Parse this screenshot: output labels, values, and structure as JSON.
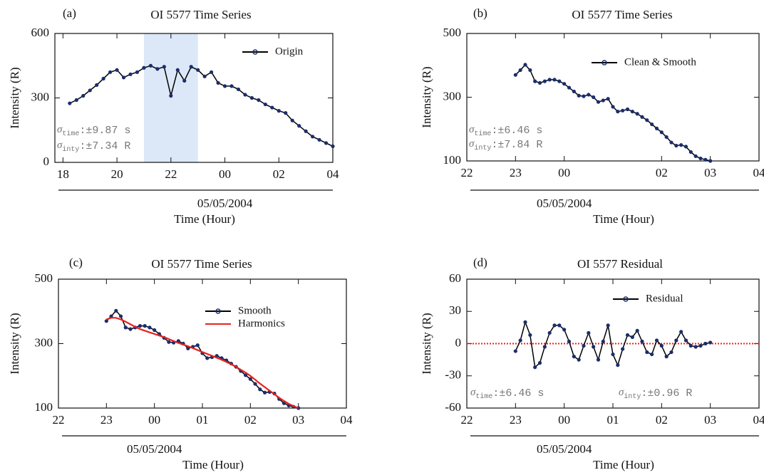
{
  "chart_data": [
    {
      "type": "line",
      "panel_label": "(a)",
      "title": "OI 5577 Time Series",
      "xlabel": "Time (Hour)",
      "ylabel": "Intensity (R)",
      "x": [
        18.25,
        18.5,
        18.75,
        19,
        19.25,
        19.5,
        19.75,
        20,
        20.25,
        20.5,
        20.75,
        21,
        21.25,
        21.5,
        21.75,
        22,
        22.25,
        22.5,
        22.75,
        23,
        23.25,
        23.5,
        23.75,
        24,
        24.25,
        24.5,
        24.75,
        25,
        25.25,
        25.5,
        25.75,
        26,
        26.25,
        26.5,
        26.75,
        27,
        27.25,
        27.5,
        27.75,
        28
      ],
      "series": [
        {
          "name": "Origin",
          "color": "#1b2d6b",
          "line_color": "#000000",
          "marker": true,
          "values": [
            275,
            290,
            310,
            335,
            360,
            390,
            420,
            430,
            395,
            410,
            420,
            440,
            450,
            435,
            445,
            310,
            430,
            380,
            445,
            430,
            400,
            420,
            370,
            355,
            355,
            340,
            315,
            300,
            290,
            270,
            255,
            240,
            230,
            195,
            170,
            145,
            120,
            105,
            90,
            75
          ]
        }
      ],
      "xlim": [
        17.7,
        28
      ],
      "ylim": [
        0,
        600
      ],
      "xticks": [
        18,
        20,
        22,
        {
          "value": 24,
          "label": "00"
        },
        {
          "value": 26,
          "label": "02"
        },
        {
          "value": 28,
          "label": "04"
        }
      ],
      "yticks": [
        0,
        300,
        600
      ],
      "x2ticks": [
        {
          "value": 24,
          "label": "05/05/2004"
        }
      ],
      "highlight": {
        "range": [
          21,
          23
        ],
        "color": "#dce8f7"
      },
      "legend": "upper right",
      "annotations": [
        {
          "symbol": "σ",
          "subscript": "time",
          "text": ":±9.87 s"
        },
        {
          "symbol": "σ",
          "subscript": "inty",
          "text": ":±7.34 R"
        }
      ]
    },
    {
      "type": "line",
      "panel_label": "(b)",
      "title": "OI 5577 Time Series",
      "xlabel": "Time (Hour)",
      "ylabel": "Intensity (R)",
      "x": [
        23,
        23.1,
        23.2,
        23.3,
        23.4,
        23.5,
        23.6,
        23.7,
        23.8,
        23.9,
        24,
        24.1,
        24.2,
        24.3,
        24.4,
        24.5,
        24.6,
        24.7,
        24.8,
        24.9,
        25,
        25.1,
        25.2,
        25.3,
        25.4,
        25.5,
        25.6,
        25.7,
        25.8,
        25.9,
        26,
        26.1,
        26.2,
        26.3,
        26.4,
        26.5,
        26.6,
        26.7,
        26.8,
        26.9,
        27
      ],
      "series": [
        {
          "name": "Clean & Smooth",
          "color": "#1b2d6b",
          "line_color": "#000000",
          "marker": true,
          "values": [
            370,
            385,
            402,
            385,
            350,
            345,
            350,
            355,
            355,
            350,
            342,
            330,
            318,
            305,
            303,
            308,
            300,
            285,
            290,
            295,
            270,
            255,
            258,
            262,
            255,
            248,
            238,
            228,
            215,
            202,
            190,
            175,
            158,
            148,
            150,
            145,
            128,
            115,
            108,
            104,
            100
          ]
        }
      ],
      "xlim": [
        22,
        28
      ],
      "ylim": [
        100,
        500
      ],
      "xticks": [
        22,
        23,
        {
          "value": 24,
          "label": "00"
        },
        {
          "value": 26,
          "label": "02"
        },
        {
          "value": 27,
          "label": "03"
        },
        {
          "value": 28,
          "label": "04"
        }
      ],
      "yticks": [
        100,
        300,
        500
      ],
      "x2ticks": [
        {
          "value": 24,
          "label": "05/05/2004"
        }
      ],
      "legend": "upper right",
      "annotations": [
        {
          "symbol": "σ",
          "subscript": "time",
          "text": ":±6.46 s"
        },
        {
          "symbol": "σ",
          "subscript": "inty",
          "text": ":±7.84 R"
        }
      ]
    },
    {
      "type": "line",
      "panel_label": "(c)",
      "title": "OI 5577 Time Series",
      "xlabel": "Time (Hour)",
      "ylabel": "Intensity (R)",
      "x": [
        23,
        23.1,
        23.2,
        23.3,
        23.4,
        23.5,
        23.6,
        23.7,
        23.8,
        23.9,
        24,
        24.1,
        24.2,
        24.3,
        24.4,
        24.5,
        24.6,
        24.7,
        24.8,
        24.9,
        25,
        25.1,
        25.2,
        25.3,
        25.4,
        25.5,
        25.6,
        25.7,
        25.8,
        25.9,
        26,
        26.1,
        26.2,
        26.3,
        26.4,
        26.5,
        26.6,
        26.7,
        26.8,
        26.9,
        27
      ],
      "series": [
        {
          "name": "Smooth",
          "color": "#1b2d6b",
          "line_color": "#000000",
          "marker": true,
          "values": [
            370,
            385,
            402,
            385,
            350,
            345,
            350,
            355,
            355,
            350,
            342,
            330,
            318,
            305,
            303,
            308,
            300,
            285,
            290,
            295,
            270,
            255,
            258,
            262,
            255,
            248,
            238,
            228,
            215,
            202,
            190,
            175,
            158,
            148,
            150,
            145,
            128,
            115,
            108,
            104,
            100
          ]
        },
        {
          "name": "Harmonics",
          "color": "#e8211c",
          "line_color": "#e8211c",
          "marker": false,
          "values": [
            375,
            380,
            380,
            375,
            368,
            360,
            352,
            345,
            340,
            335,
            330,
            325,
            320,
            314,
            308,
            302,
            297,
            292,
            286,
            280,
            274,
            268,
            262,
            256,
            250,
            243,
            236,
            228,
            219,
            210,
            200,
            188,
            176,
            165,
            154,
            143,
            132,
            122,
            113,
            106,
            100
          ]
        }
      ],
      "xlim": [
        22,
        28
      ],
      "ylim": [
        100,
        500
      ],
      "xticks": [
        22,
        23,
        {
          "value": 24,
          "label": "00"
        },
        {
          "value": 25,
          "label": "01"
        },
        {
          "value": 26,
          "label": "02"
        },
        {
          "value": 27,
          "label": "03"
        },
        {
          "value": 28,
          "label": "04"
        }
      ],
      "yticks": [
        100,
        300,
        500
      ],
      "x2ticks": [
        {
          "value": 24,
          "label": "05/05/2004"
        }
      ],
      "legend": "upper right"
    },
    {
      "type": "line",
      "panel_label": "(d)",
      "title": "OI 5577 Residual",
      "xlabel": "Time (Hour)",
      "ylabel": "Intensity (R)",
      "x": [
        23,
        23.1,
        23.2,
        23.3,
        23.4,
        23.5,
        23.6,
        23.7,
        23.8,
        23.9,
        24,
        24.1,
        24.2,
        24.3,
        24.4,
        24.5,
        24.6,
        24.7,
        24.8,
        24.9,
        25,
        25.1,
        25.2,
        25.3,
        25.4,
        25.5,
        25.6,
        25.7,
        25.8,
        25.9,
        26,
        26.1,
        26.2,
        26.3,
        26.4,
        26.5,
        26.6,
        26.7,
        26.8,
        26.9,
        27
      ],
      "series": [
        {
          "name": "Residual",
          "color": "#1b2d6b",
          "line_color": "#000000",
          "marker": true,
          "values": [
            -7,
            3,
            20,
            8,
            -22,
            -18,
            -3,
            10,
            17,
            17,
            13,
            2,
            -12,
            -15,
            -2,
            10,
            -3,
            -15,
            2,
            17,
            -10,
            -20,
            -5,
            8,
            6,
            12,
            2,
            -8,
            -10,
            3,
            -2,
            -12,
            -8,
            3,
            11,
            3,
            -2,
            -3,
            -2,
            0,
            1
          ]
        }
      ],
      "xlim": [
        22,
        28
      ],
      "ylim": [
        -60,
        60
      ],
      "xticks": [
        22,
        23,
        {
          "value": 24,
          "label": "00"
        },
        {
          "value": 25,
          "label": "01"
        },
        {
          "value": 26,
          "label": "02"
        },
        {
          "value": 27,
          "label": "03"
        },
        {
          "value": 28,
          "label": "04"
        }
      ],
      "yticks": [
        -60,
        -30,
        0,
        30,
        60
      ],
      "x2ticks": [
        {
          "value": 24,
          "label": "05/05/2004"
        }
      ],
      "reference_line": {
        "value": 0,
        "color": "#e8211c"
      },
      "legend": "upper right",
      "annotations": [
        {
          "symbol": "σ",
          "subscript": "time",
          "text": ":±6.46 s"
        },
        {
          "symbol": "σ",
          "subscript": "inty",
          "text": ":±0.96 R"
        }
      ]
    }
  ]
}
